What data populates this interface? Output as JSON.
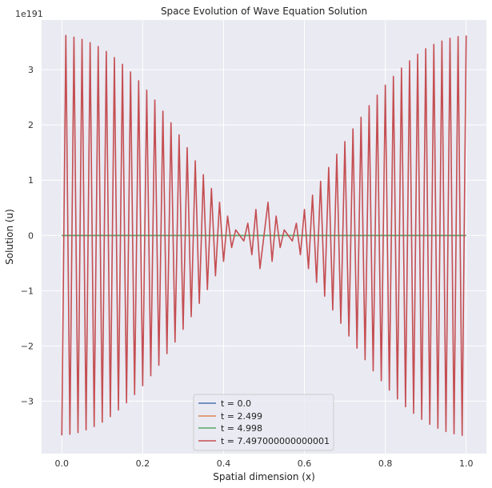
{
  "chart_data": {
    "type": "line",
    "title": "Space Evolution of Wave Equation Solution",
    "xlabel": "Spatial dimension (x)",
    "ylabel": "Solution (u)",
    "y_offset_text": "1e191",
    "y_scale_exponent": 191,
    "xlim": [
      -0.05,
      1.05
    ],
    "ylim": [
      -3.95,
      3.9
    ],
    "x_ticks": [
      0.0,
      0.2,
      0.4,
      0.6,
      0.8,
      1.0
    ],
    "x_tick_labels": [
      "0.0",
      "0.2",
      "0.4",
      "0.6",
      "0.8",
      "1.0"
    ],
    "y_ticks": [
      -3,
      -2,
      -1,
      0,
      1,
      2,
      3
    ],
    "y_tick_labels": [
      "−3",
      "−2",
      "−1",
      "0",
      "1",
      "2",
      "3"
    ],
    "grid": true,
    "legend_position": "bottom-center",
    "series": [
      {
        "name": "t = 0.0",
        "color": "#4c72b0",
        "x": [
          0.0,
          1.0
        ],
        "y": [
          0,
          0
        ]
      },
      {
        "name": "t = 2.499",
        "color": "#dd8452",
        "x": [
          0.0,
          1.0
        ],
        "y": [
          0,
          0
        ]
      },
      {
        "name": "t = 4.998",
        "color": "#55a868",
        "x": [
          0.0,
          1.0
        ],
        "y": [
          0,
          0
        ]
      },
      {
        "name": "t = 7.497000000000001",
        "color": "#c44e52",
        "x": [
          0.0,
          0.01,
          0.02,
          0.03,
          0.04,
          0.05,
          0.06,
          0.07,
          0.08,
          0.09,
          0.1,
          0.11,
          0.12,
          0.13,
          0.14,
          0.15,
          0.16,
          0.17,
          0.18,
          0.19,
          0.2,
          0.21,
          0.22,
          0.23,
          0.24,
          0.25,
          0.26,
          0.27,
          0.28,
          0.29,
          0.3,
          0.31,
          0.32,
          0.33,
          0.34,
          0.35,
          0.36,
          0.37,
          0.38,
          0.39,
          0.4,
          0.41,
          0.42,
          0.43,
          0.44,
          0.45,
          0.46,
          0.47,
          0.48,
          0.49,
          0.5,
          0.51,
          0.52,
          0.53,
          0.54,
          0.55,
          0.56,
          0.57,
          0.58,
          0.59,
          0.6,
          0.61,
          0.62,
          0.63,
          0.64,
          0.65,
          0.66,
          0.67,
          0.68,
          0.69,
          0.7,
          0.71,
          0.72,
          0.73,
          0.74,
          0.75,
          0.76,
          0.77,
          0.78,
          0.79,
          0.8,
          0.81,
          0.82,
          0.83,
          0.84,
          0.85,
          0.86,
          0.87,
          0.88,
          0.89,
          0.9,
          0.91,
          0.92,
          0.93,
          0.94,
          0.95,
          0.96,
          0.97,
          0.98,
          0.99,
          1.0
        ],
        "y": [
          -3.62,
          3.62,
          -3.6,
          3.59,
          -3.57,
          3.55,
          -3.52,
          3.49,
          -3.46,
          3.42,
          -3.38,
          3.33,
          -3.28,
          3.22,
          -3.16,
          3.1,
          -3.03,
          2.96,
          -2.88,
          2.8,
          -2.72,
          2.63,
          -2.54,
          2.45,
          -2.35,
          2.25,
          -2.14,
          2.04,
          -1.93,
          1.82,
          -1.7,
          1.59,
          -1.47,
          1.35,
          -1.23,
          1.1,
          -0.98,
          0.85,
          -0.73,
          0.6,
          -0.47,
          0.35,
          -0.22,
          0.1,
          0.0,
          -0.1,
          0.22,
          -0.35,
          0.47,
          -0.6,
          0.0,
          0.6,
          -0.47,
          0.35,
          -0.22,
          0.1,
          0.0,
          -0.1,
          0.22,
          -0.35,
          0.47,
          -0.6,
          0.73,
          -0.85,
          0.98,
          -1.1,
          1.23,
          -1.35,
          1.47,
          -1.59,
          1.7,
          -1.82,
          1.93,
          -2.04,
          2.14,
          -2.25,
          2.35,
          -2.45,
          2.54,
          -2.63,
          2.72,
          -2.8,
          2.88,
          -2.96,
          3.03,
          -3.1,
          3.16,
          -3.22,
          3.28,
          -3.33,
          3.38,
          -3.42,
          3.46,
          -3.49,
          3.52,
          -3.55,
          3.57,
          -3.59,
          3.6,
          -3.62,
          3.62
        ]
      }
    ]
  }
}
